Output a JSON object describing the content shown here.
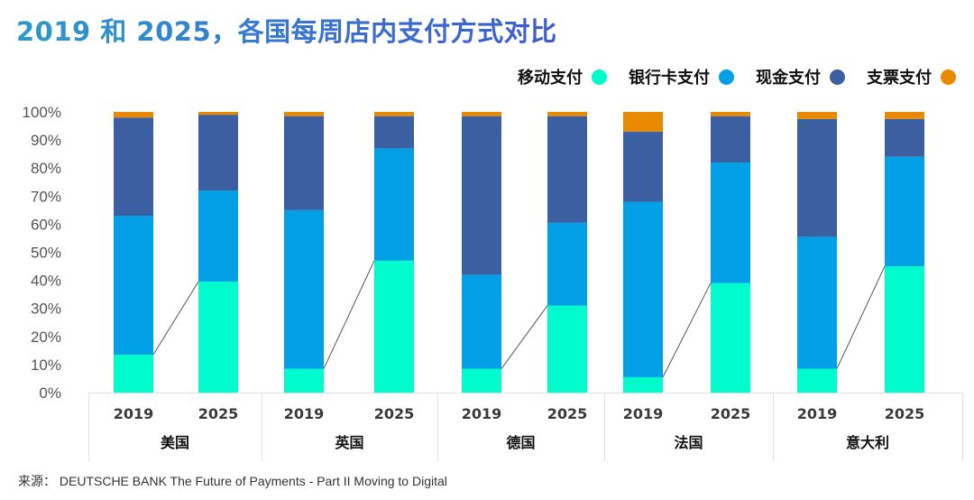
{
  "title": "2019 和 2025，各国每周店内支付方式对比",
  "source": "来源：  DEUTSCHE BANK The Future of Payments - Part II Moving to Digital",
  "colors": {
    "mobile": "#00fccc",
    "card": "#009fe6",
    "cash": "#3b5fa0",
    "cheque": "#e88a00"
  },
  "legend": [
    {
      "label": "移动支付",
      "key": "mobile"
    },
    {
      "label": "银行卡支付",
      "key": "card"
    },
    {
      "label": "现金支付",
      "key": "cash"
    },
    {
      "label": "支票支付",
      "key": "cheque"
    }
  ],
  "chart_data": {
    "type": "bar",
    "stacked": true,
    "title": "2019 和 2025，各国每周店内支付方式对比",
    "xlabel": "",
    "ylabel": "",
    "ylim": [
      0,
      100
    ],
    "yticks": [
      "0%",
      "10%",
      "20%",
      "30%",
      "40%",
      "50%",
      "60%",
      "70%",
      "80%",
      "90%",
      "100%"
    ],
    "grid": false,
    "legend_position": "top-right",
    "groups": [
      "美国",
      "英国",
      "德国",
      "法国",
      "意大利"
    ],
    "categories": [
      "2019",
      "2025",
      "2019",
      "2025",
      "2019",
      "2025",
      "2019",
      "2025",
      "2019",
      "2025"
    ],
    "series": [
      {
        "name": "移动支付",
        "key": "mobile",
        "values": [
          13.5,
          39.5,
          8.5,
          47,
          8.5,
          31,
          5.5,
          39,
          8.5,
          45
        ]
      },
      {
        "name": "银行卡支付",
        "key": "card",
        "values": [
          49.5,
          32.5,
          56.5,
          40,
          33.5,
          29.5,
          62.5,
          43,
          47,
          39
        ]
      },
      {
        "name": "现金支付",
        "key": "cash",
        "values": [
          35,
          27,
          33.5,
          11.5,
          56.5,
          38,
          25,
          16.5,
          42,
          13.5
        ]
      },
      {
        "name": "支票支付",
        "key": "cheque",
        "values": [
          2,
          1,
          1.5,
          1.5,
          1.5,
          1.5,
          7,
          1.5,
          2.5,
          2.5
        ]
      }
    ],
    "connectors": "line linking top of 2019 mobile segment to top of 2025 mobile segment within each country"
  }
}
